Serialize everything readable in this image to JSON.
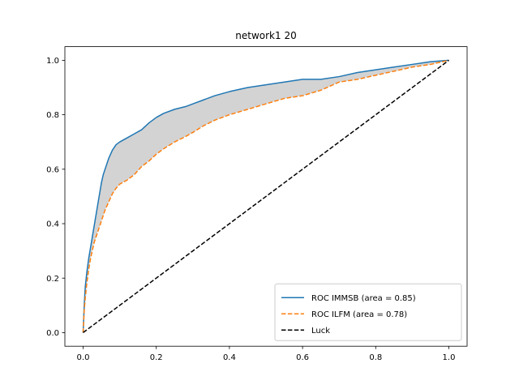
{
  "chart_data": {
    "type": "line",
    "title": "network1 20",
    "xlabel": "",
    "ylabel": "",
    "xlim": [
      0.0,
      1.0
    ],
    "ylim": [
      0.0,
      1.0
    ],
    "xticks": [
      "0.0",
      "0.2",
      "0.4",
      "0.6",
      "0.8",
      "1.0"
    ],
    "yticks": [
      "0.0",
      "0.2",
      "0.4",
      "0.6",
      "0.8",
      "1.0"
    ],
    "grid": false,
    "legend_position": "lower-right",
    "fill_between": {
      "color": "#d3d3d3",
      "series": [
        "ROC IMMSB (area = 0.85)",
        "ROC ILFM (area = 0.78)"
      ]
    },
    "series": [
      {
        "name": "ROC IMMSB (area = 0.85)",
        "color": "#1f77b4",
        "style": "solid",
        "x": [
          0.0,
          0.003,
          0.006,
          0.01,
          0.015,
          0.02,
          0.025,
          0.03,
          0.035,
          0.04,
          0.045,
          0.05,
          0.055,
          0.06,
          0.065,
          0.07,
          0.08,
          0.09,
          0.1,
          0.12,
          0.14,
          0.16,
          0.18,
          0.2,
          0.22,
          0.25,
          0.28,
          0.3,
          0.33,
          0.36,
          0.4,
          0.45,
          0.5,
          0.55,
          0.6,
          0.65,
          0.7,
          0.75,
          0.8,
          0.85,
          0.9,
          0.95,
          1.0
        ],
        "y": [
          0.0,
          0.1,
          0.17,
          0.22,
          0.27,
          0.31,
          0.35,
          0.39,
          0.43,
          0.47,
          0.51,
          0.55,
          0.58,
          0.6,
          0.62,
          0.64,
          0.67,
          0.69,
          0.7,
          0.715,
          0.73,
          0.745,
          0.77,
          0.79,
          0.805,
          0.82,
          0.83,
          0.84,
          0.855,
          0.87,
          0.885,
          0.9,
          0.91,
          0.92,
          0.93,
          0.93,
          0.94,
          0.955,
          0.965,
          0.975,
          0.985,
          0.995,
          1.0
        ]
      },
      {
        "name": "ROC ILFM (area = 0.78)",
        "color": "#ff7f0e",
        "style": "dashed",
        "x": [
          0.0,
          0.003,
          0.006,
          0.01,
          0.015,
          0.02,
          0.025,
          0.03,
          0.035,
          0.04,
          0.05,
          0.06,
          0.07,
          0.08,
          0.09,
          0.1,
          0.12,
          0.14,
          0.16,
          0.18,
          0.2,
          0.22,
          0.25,
          0.28,
          0.3,
          0.33,
          0.36,
          0.4,
          0.45,
          0.5,
          0.55,
          0.6,
          0.65,
          0.7,
          0.75,
          0.8,
          0.85,
          0.9,
          0.95,
          1.0
        ],
        "y": [
          0.0,
          0.08,
          0.13,
          0.18,
          0.23,
          0.27,
          0.3,
          0.33,
          0.35,
          0.37,
          0.41,
          0.45,
          0.48,
          0.51,
          0.53,
          0.545,
          0.56,
          0.58,
          0.61,
          0.63,
          0.655,
          0.675,
          0.7,
          0.72,
          0.735,
          0.76,
          0.78,
          0.8,
          0.82,
          0.84,
          0.86,
          0.87,
          0.89,
          0.92,
          0.93,
          0.945,
          0.96,
          0.975,
          0.985,
          1.0
        ]
      },
      {
        "name": "Luck",
        "color": "#000000",
        "style": "dashed",
        "x": [
          0.0,
          1.0
        ],
        "y": [
          0.0,
          1.0
        ]
      }
    ]
  }
}
